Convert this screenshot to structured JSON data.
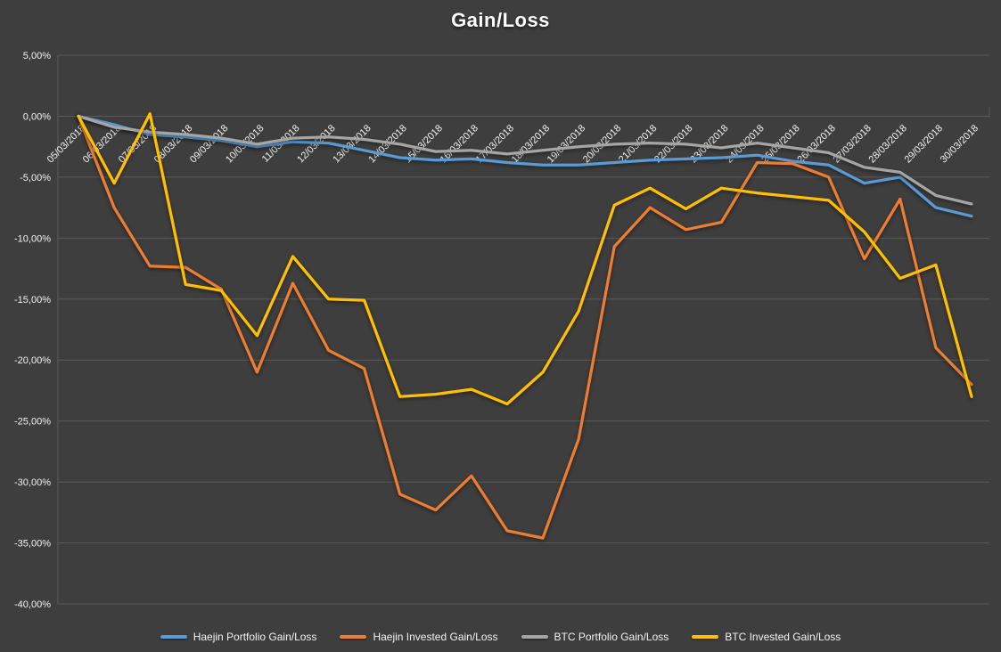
{
  "chart_data": {
    "type": "line",
    "title": "Gain/Loss",
    "x": [
      "05/03/2018",
      "06/03/2018",
      "07/03/2018",
      "08/03/2018",
      "09/03/2018",
      "10/03/2018",
      "11/03/2018",
      "12/03/2018",
      "13/03/2018",
      "14/03/2018",
      "15/03/2018",
      "16/03/2018",
      "17/03/2018",
      "18/03/2018",
      "19/03/2018",
      "20/03/2018",
      "21/03/2018",
      "22/03/2018",
      "23/03/2018",
      "24/03/2018",
      "25/03/2018",
      "26/03/2018",
      "27/03/2018",
      "28/03/2018",
      "29/03/2018",
      "30/03/2018"
    ],
    "series": [
      {
        "name": "Haejin Portfolio Gain/Loss",
        "color": "#5B9BD5",
        "values": [
          0,
          -0.7,
          -1.5,
          -1.7,
          -2.0,
          -2.5,
          -2.1,
          -2.2,
          -2.8,
          -3.4,
          -3.6,
          -3.5,
          -3.8,
          -4.0,
          -4.0,
          -3.8,
          -3.6,
          -3.5,
          -3.4,
          -3.2,
          -3.7,
          -4.0,
          -5.5,
          -5.0,
          -7.5,
          -8.2
        ]
      },
      {
        "name": "Haejin Invested Gain/Loss",
        "color": "#ED7D31",
        "values": [
          0,
          -7.5,
          -12.3,
          -12.4,
          -14.2,
          -21.0,
          -13.7,
          -19.2,
          -20.7,
          -31.0,
          -32.3,
          -29.5,
          -34.0,
          -34.6,
          -26.5,
          -10.7,
          -7.5,
          -9.3,
          -8.7,
          -3.8,
          -3.9,
          -5.0,
          -11.7,
          -6.8,
          -19.0,
          -22.0
        ]
      },
      {
        "name": "BTC Portfolio Gain/Loss",
        "color": "#A5A5A5",
        "values": [
          0,
          -0.9,
          -1.3,
          -1.5,
          -1.8,
          -2.3,
          -1.8,
          -1.7,
          -1.9,
          -2.3,
          -2.9,
          -2.8,
          -3.1,
          -2.8,
          -2.5,
          -2.3,
          -2.2,
          -2.3,
          -2.6,
          -2.2,
          -2.6,
          -3.0,
          -4.2,
          -4.6,
          -6.5,
          -7.2
        ]
      },
      {
        "name": "BTC Invested Gain/Loss",
        "color": "#FFC000",
        "values": [
          0,
          -5.5,
          0.2,
          -13.8,
          -14.3,
          -18.0,
          -11.5,
          -15.0,
          -15.1,
          -23.0,
          -22.8,
          -22.4,
          -23.6,
          -21.0,
          -16.0,
          -7.3,
          -5.9,
          -7.6,
          -5.9,
          -6.3,
          -6.6,
          -6.9,
          -9.5,
          -13.3,
          -12.2,
          -23.0
        ]
      }
    ],
    "ylim": [
      -40,
      5
    ],
    "y_ticks": [
      5,
      0,
      -5,
      -10,
      -15,
      -20,
      -25,
      -30,
      -35,
      -40
    ],
    "y_tick_labels": [
      "5,00%",
      "0,00%",
      "-5,00%",
      "-10,00%",
      "-15,00%",
      "-20,00%",
      "-25,00%",
      "-30,00%",
      "-35,00%",
      "-40,00%"
    ],
    "grid": true,
    "legend_position": "bottom",
    "colors": {
      "background": "#3E3E3E",
      "gridline": "#5A5A5A",
      "axis_text": "#F2F2F2",
      "title_text": "#FFFFFF"
    }
  }
}
